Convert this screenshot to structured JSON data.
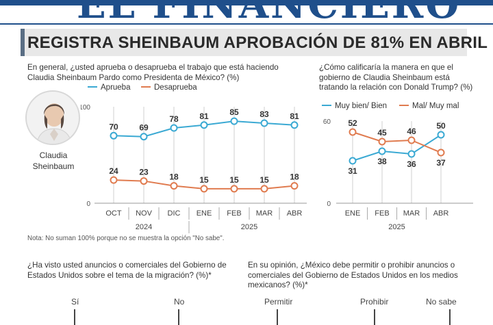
{
  "masthead": {
    "title": "EL FINANCIERO"
  },
  "headline": "REGISTRA SHEINBAUM APROBACIÓN DE 81% EN ABRIL",
  "q1": {
    "text": "En general, ¿usted aprueba o desaprueba el trabajo que está haciendo Claudia Sheinbaum Pardo como Presidenta de México? (%)",
    "legend_a": "Aprueba",
    "legend_b": "Desaprueba"
  },
  "person": {
    "name": "Claudia Sheinbaum"
  },
  "q2": {
    "text": "¿Cómo calificaría la manera en que el gobierno de Claudia Sheinbaum está tratando la relación con Donald Trump? (%)",
    "legend_a": "Muy bien/ Bien",
    "legend_b": "Mal/ Muy mal"
  },
  "note": "Nota: No suman 100% porque no se muestra la opción \"No sabe\".",
  "q3": {
    "text": "¿Ha visto usted anuncios o comerciales del Gobierno de Estados Unidos sobre el tema de la migración? (%)*",
    "options": [
      "Sí",
      "No"
    ]
  },
  "q4": {
    "text": "En su opinión, ¿México debe permitir o prohibir anuncios o comerciales del Gobierno de Estados Unidos en los medios mexicanos? (%)*",
    "options": [
      "Permitir",
      "Prohibir",
      "No sabe"
    ]
  },
  "colors": {
    "blue": "#3aa9d3",
    "orange": "#e07b4f",
    "grid": "#cfcfcf",
    "brand": "#1f4f8b"
  },
  "chart_data": [
    {
      "type": "line",
      "categories": [
        "OCT",
        "NOV",
        "DIC",
        "ENE",
        "FEB",
        "MAR",
        "ABR"
      ],
      "year_labels": [
        "2024",
        "2025"
      ],
      "series": [
        {
          "name": "Aprueba",
          "color": "#3aa9d3",
          "values": [
            70,
            69,
            78,
            81,
            85,
            83,
            81
          ]
        },
        {
          "name": "Desaprueba",
          "color": "#e07b4f",
          "values": [
            24,
            23,
            18,
            15,
            15,
            15,
            18
          ]
        }
      ],
      "ylim": [
        0,
        100
      ],
      "yticks": [
        0,
        100
      ],
      "grid": "vertical"
    },
    {
      "type": "line",
      "categories": [
        "ENE",
        "FEB",
        "MAR",
        "ABR"
      ],
      "year_labels": [
        "2025"
      ],
      "series": [
        {
          "name": "Muy bien/ Bien",
          "color": "#3aa9d3",
          "values": [
            31,
            38,
            36,
            50
          ]
        },
        {
          "name": "Mal/ Muy mal",
          "color": "#e07b4f",
          "values": [
            52,
            45,
            46,
            37
          ]
        }
      ],
      "ylim": [
        0,
        60
      ],
      "yticks": [
        0,
        60
      ],
      "grid": "vertical"
    }
  ]
}
